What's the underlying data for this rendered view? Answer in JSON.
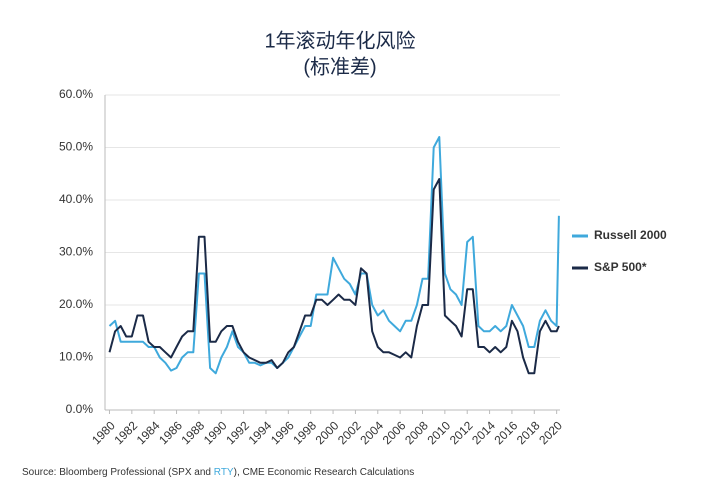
{
  "chart_data": {
    "type": "line",
    "title": "1年滚动年化风险",
    "subtitle": "(标准差)",
    "source": [
      "Source: Bloomberg Professional (SPX and ",
      "RTY",
      "), CME Economic Research Calculations"
    ],
    "x": [
      1980,
      1980.5,
      1981,
      1981.5,
      1982,
      1982.5,
      1983,
      1983.5,
      1984,
      1984.5,
      1985,
      1985.5,
      1986,
      1986.5,
      1987,
      1987.5,
      1988,
      1988.5,
      1989,
      1989.5,
      1990,
      1990.5,
      1991,
      1991.5,
      1992,
      1992.5,
      1993,
      1993.5,
      1994,
      1994.5,
      1995,
      1995.5,
      1996,
      1996.5,
      1997,
      1997.5,
      1998,
      1998.5,
      1999,
      1999.5,
      2000,
      2000.5,
      2001,
      2001.5,
      2002,
      2002.5,
      2003,
      2003.5,
      2004,
      2004.5,
      2005,
      2005.5,
      2006,
      2006.5,
      2007,
      2007.5,
      2008,
      2008.5,
      2009,
      2009.5,
      2010,
      2010.5,
      2011,
      2011.5,
      2012,
      2012.5,
      2013,
      2013.5,
      2014,
      2014.5,
      2015,
      2015.5,
      2016,
      2016.5,
      2017,
      2017.5,
      2018,
      2018.5,
      2019,
      2019.5,
      2020,
      2020.2
    ],
    "series": [
      {
        "name": "Russell 2000",
        "color": "#3fa9dc",
        "values": [
          16,
          17,
          13,
          13,
          13,
          13,
          13,
          12,
          12,
          10,
          9,
          7.5,
          8,
          10,
          11,
          11,
          26,
          26,
          8,
          7,
          10,
          12,
          15,
          12,
          11,
          9,
          9,
          8.5,
          9,
          9,
          8,
          9,
          10,
          12,
          14,
          16,
          16,
          22,
          22,
          22,
          29,
          27,
          25,
          24,
          22,
          26,
          26,
          20,
          18,
          19,
          17,
          16,
          15,
          17,
          17,
          20,
          25,
          25,
          50,
          52,
          26,
          23,
          22,
          20,
          32,
          33,
          16,
          15,
          15,
          16,
          15,
          16,
          20,
          18,
          16,
          12,
          12,
          17,
          19,
          17,
          16,
          37
        ]
      },
      {
        "name": "S&P 500*",
        "color": "#1b2a47",
        "values": [
          11,
          15,
          16,
          14,
          14,
          18,
          18,
          13,
          12,
          12,
          11,
          10,
          12,
          14,
          15,
          15,
          33,
          33,
          13,
          13,
          15,
          16,
          16,
          13,
          11,
          10,
          9.5,
          9,
          9,
          9.5,
          8,
          9,
          11,
          12,
          15,
          18,
          18,
          21,
          21,
          20,
          21,
          22,
          21,
          21,
          20,
          27,
          26,
          15,
          12,
          11,
          11,
          10.5,
          10,
          11,
          10,
          16,
          20,
          20,
          42,
          44,
          18,
          17,
          16,
          14,
          23,
          23,
          12,
          12,
          11,
          12,
          11,
          12,
          17,
          15,
          10,
          7,
          7,
          15,
          17,
          15,
          15,
          16
        ]
      }
    ],
    "xlim": [
      1979.6,
      2020.3
    ],
    "xticks": [
      1980,
      1982,
      1984,
      1986,
      1988,
      1990,
      1992,
      1994,
      1996,
      1998,
      2000,
      2002,
      2004,
      2006,
      2008,
      2010,
      2012,
      2014,
      2016,
      2018,
      2020
    ],
    "ylim": [
      0,
      60
    ],
    "yticks": [
      {
        "value": 0,
        "label": "0.0%"
      },
      {
        "value": 10,
        "label": "10.0%"
      },
      {
        "value": 20,
        "label": "20.0%"
      },
      {
        "value": 30,
        "label": "30.0%"
      },
      {
        "value": 40,
        "label": "40.0%"
      },
      {
        "value": 50,
        "label": "50.0%"
      },
      {
        "value": 60,
        "label": "60.0%"
      }
    ],
    "grid": true,
    "legend": "right"
  }
}
